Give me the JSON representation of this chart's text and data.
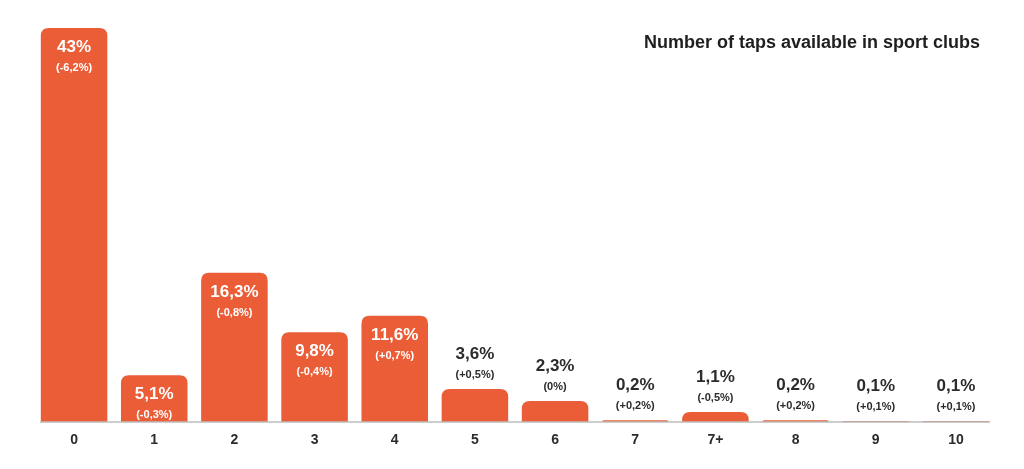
{
  "chart_data": {
    "type": "bar",
    "title": "Number of taps available in sport clubs",
    "categories": [
      "0",
      "1",
      "2",
      "3",
      "4",
      "5",
      "6",
      "7",
      "7+",
      "8",
      "9",
      "10"
    ],
    "values": [
      43,
      5.1,
      16.3,
      9.8,
      11.6,
      3.6,
      2.3,
      0.2,
      1.1,
      0.2,
      0.1,
      0.1
    ],
    "value_labels": [
      "43%",
      "5,1%",
      "16,3%",
      "9,8%",
      "11,6%",
      "3,6%",
      "2,3%",
      "0,2%",
      "1,1%",
      "0,2%",
      "0,1%",
      "0,1%"
    ],
    "color": "#ea5d37",
    "annotations": [
      "(-6,2%)",
      "(-0,3%)",
      "(-0,8%)",
      "(-0,4%)",
      "(+0,7%)",
      "(+0,5%)",
      "(0%)",
      "(+0,2%)",
      "(-0,5%)",
      "(+0,2%)",
      "(+0,1%)",
      "(+0,1%)"
    ]
  }
}
